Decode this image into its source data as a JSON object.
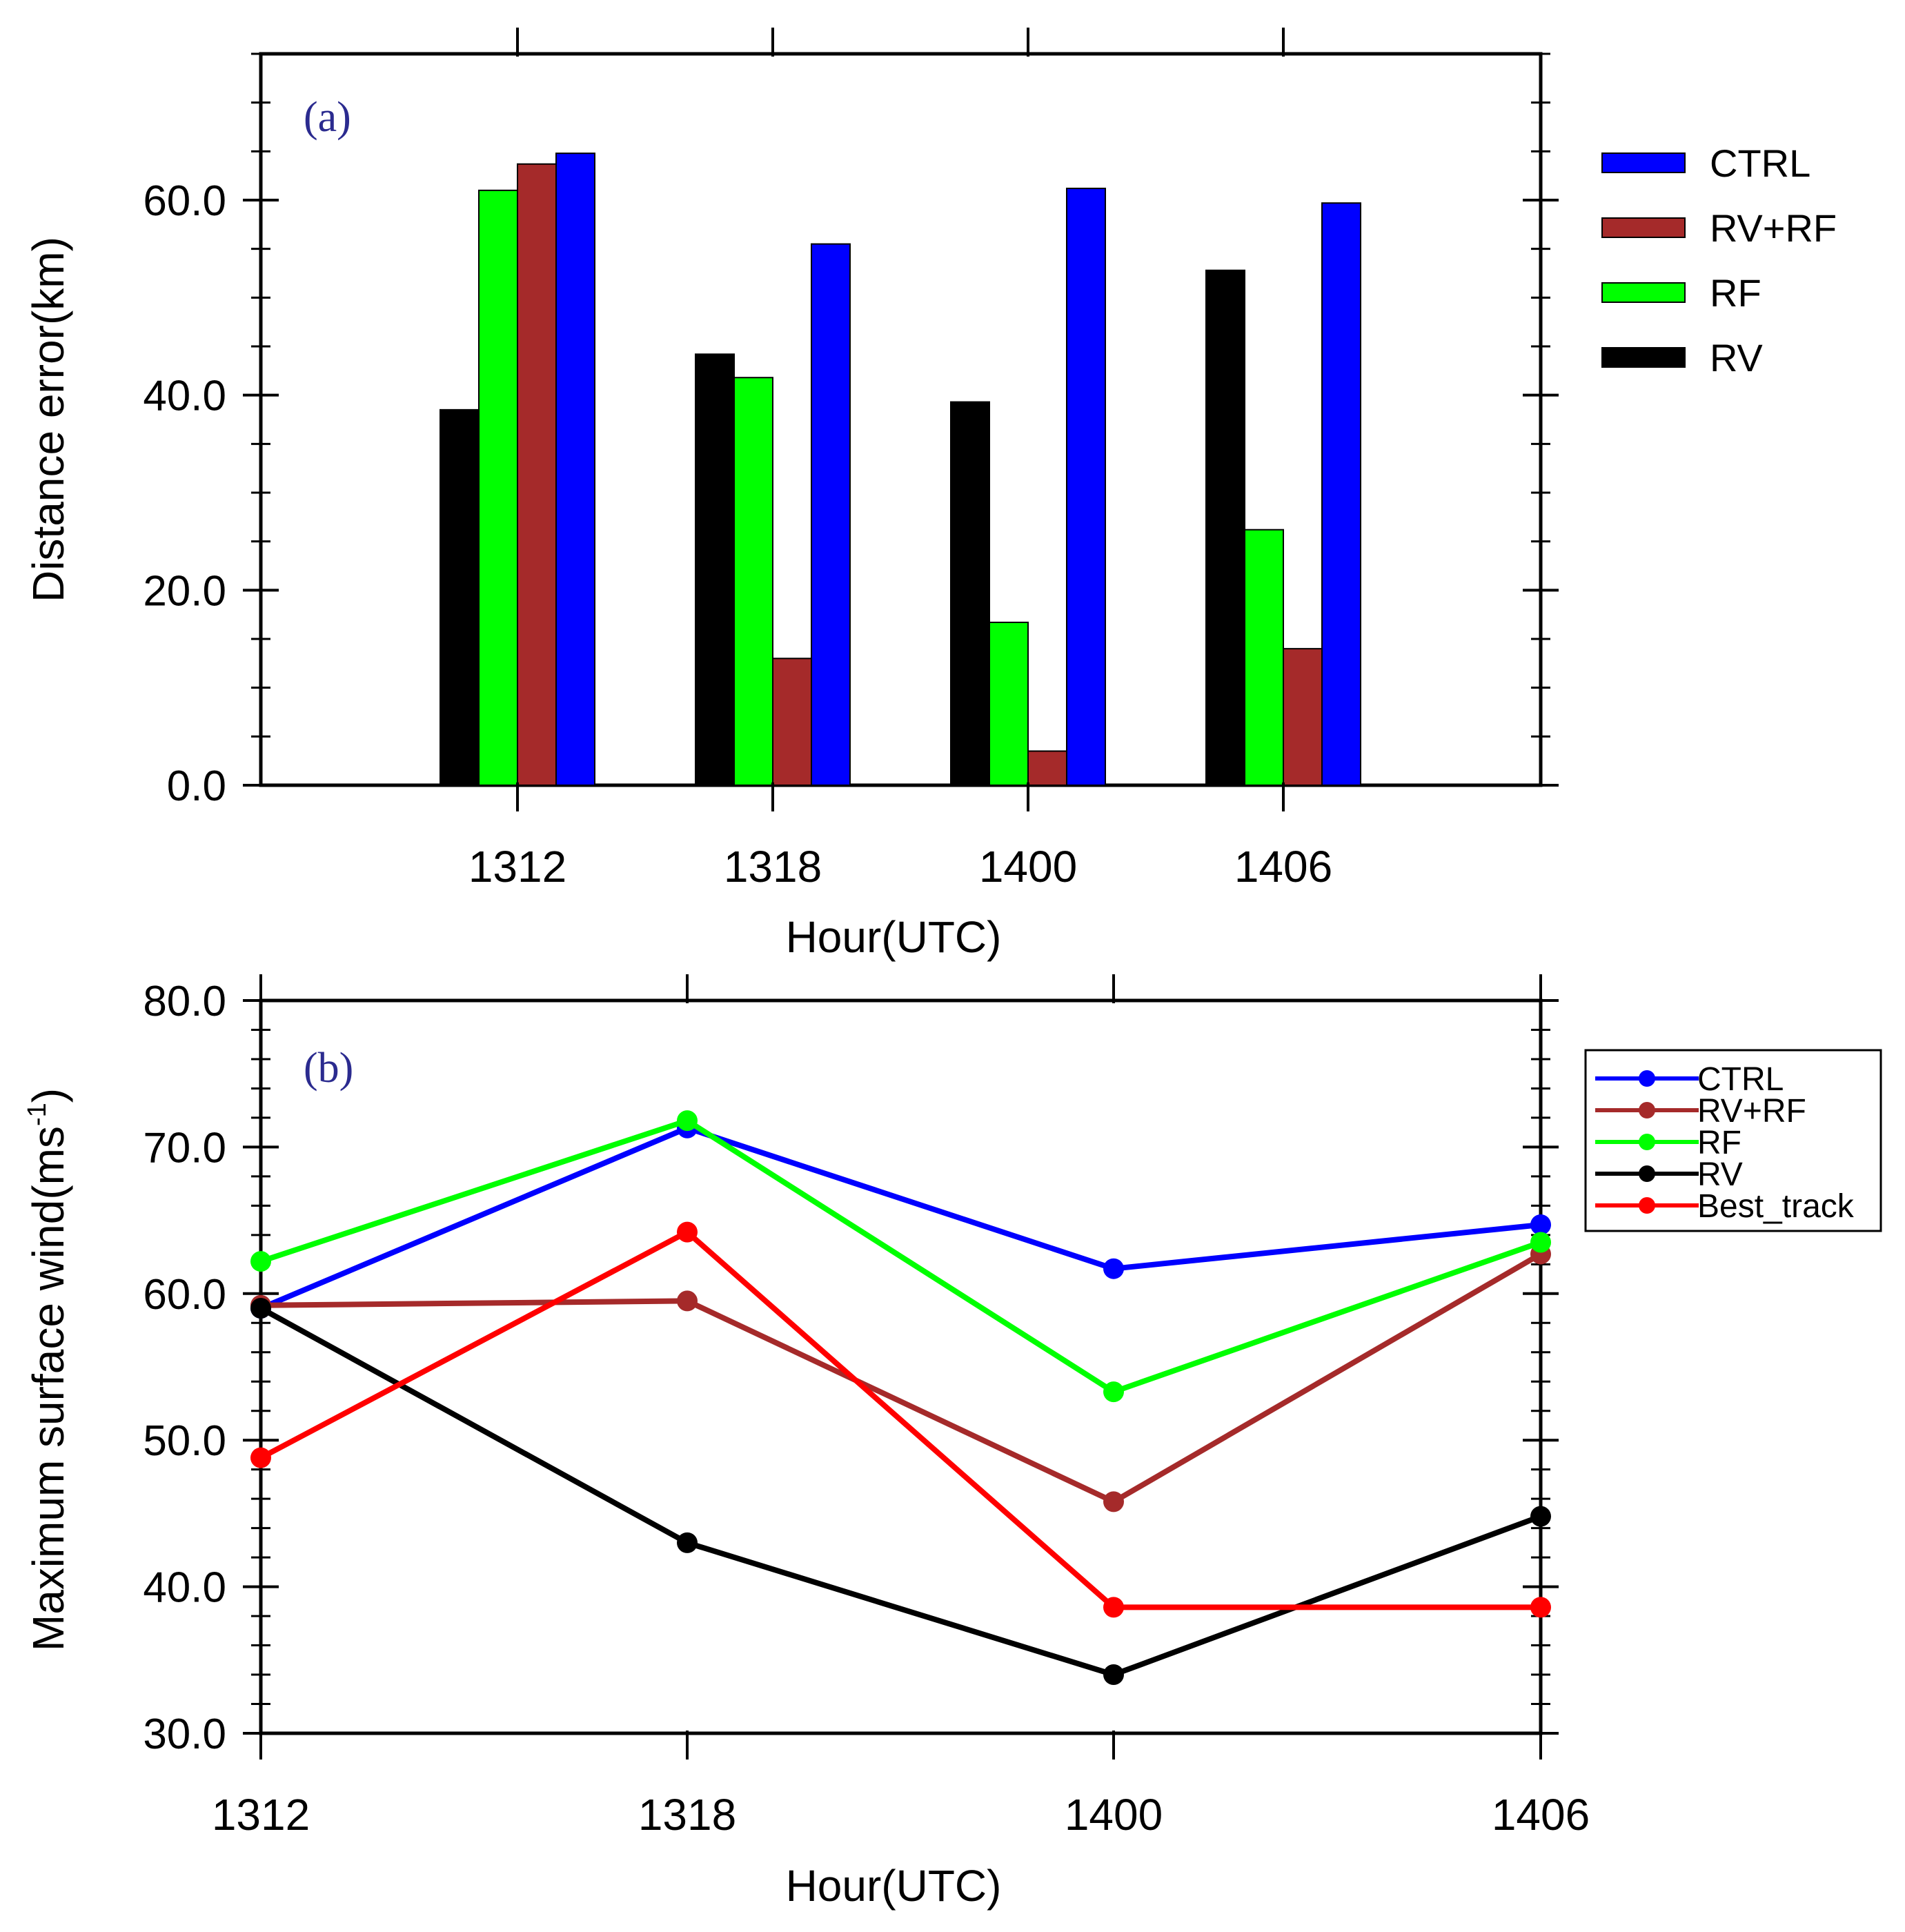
{
  "chart_data": [
    {
      "type": "bar",
      "panel_label": "(a)",
      "categories": [
        "1312",
        "1318",
        "1400",
        "1406"
      ],
      "ylabel": "Distance error(km)",
      "xlabel": "Hour(UTC)",
      "ylim": [
        0,
        75
      ],
      "yticks": [
        "0.0",
        "20.0",
        "40.0",
        "60.0"
      ],
      "ytick_values": [
        0,
        20,
        40,
        60
      ],
      "legend_position": "right",
      "series": [
        {
          "name": "RV",
          "color": "#000000",
          "values": [
            38.5,
            44.2,
            39.3,
            52.8
          ]
        },
        {
          "name": "RF",
          "color": "#00ff00",
          "values": [
            61.0,
            41.8,
            16.7,
            26.2
          ]
        },
        {
          "name": "RV+RF",
          "color": "#a52a2a",
          "values": [
            63.7,
            13.0,
            3.5,
            14.0
          ]
        },
        {
          "name": "CTRL",
          "color": "#0000ff",
          "values": [
            64.8,
            55.5,
            61.2,
            59.7
          ]
        }
      ],
      "legend_order": [
        "CTRL",
        "RV+RF",
        "RF",
        "RV"
      ]
    },
    {
      "type": "line",
      "panel_label": "(b)",
      "x": [
        "1312",
        "1318",
        "1400",
        "1406"
      ],
      "ylabel_main": "Maximum surface wind(ms",
      "ylabel_sup": "-1",
      "ylabel_end": ")",
      "xlabel": "Hour(UTC)",
      "ylim": [
        30,
        80
      ],
      "yticks": [
        "30.0",
        "40.0",
        "50.0",
        "60.0",
        "70.0",
        "80.0"
      ],
      "ytick_values": [
        30,
        40,
        50,
        60,
        70,
        80
      ],
      "legend_position": "top-right",
      "series": [
        {
          "name": "CTRL",
          "color": "#0000ff",
          "values": [
            59.0,
            71.3,
            61.7,
            64.7
          ]
        },
        {
          "name": "RV+RF",
          "color": "#a52a2a",
          "values": [
            59.2,
            59.5,
            45.8,
            62.7
          ]
        },
        {
          "name": "RF",
          "color": "#00ff00",
          "values": [
            62.2,
            71.8,
            53.3,
            63.5
          ]
        },
        {
          "name": "RV",
          "color": "#000000",
          "values": [
            59.0,
            43.0,
            34.0,
            44.8
          ]
        },
        {
          "name": "Best_track",
          "color": "#ff0000",
          "values": [
            48.8,
            64.2,
            38.6,
            38.6
          ]
        }
      ]
    }
  ]
}
